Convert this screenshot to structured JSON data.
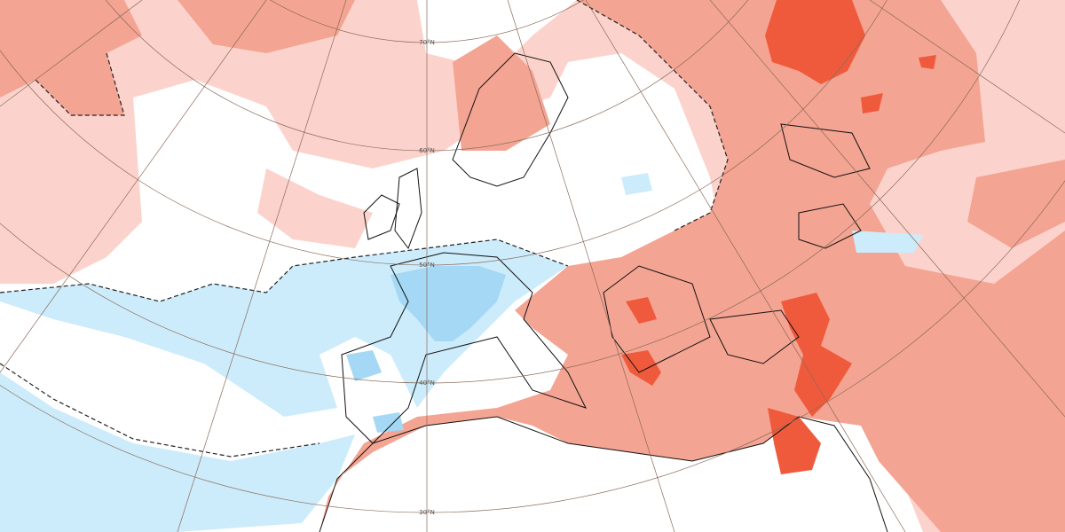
{
  "graticule_labels": [
    "70°N",
    "60°N",
    "50°N",
    "40°N",
    "30°N"
  ]
}
